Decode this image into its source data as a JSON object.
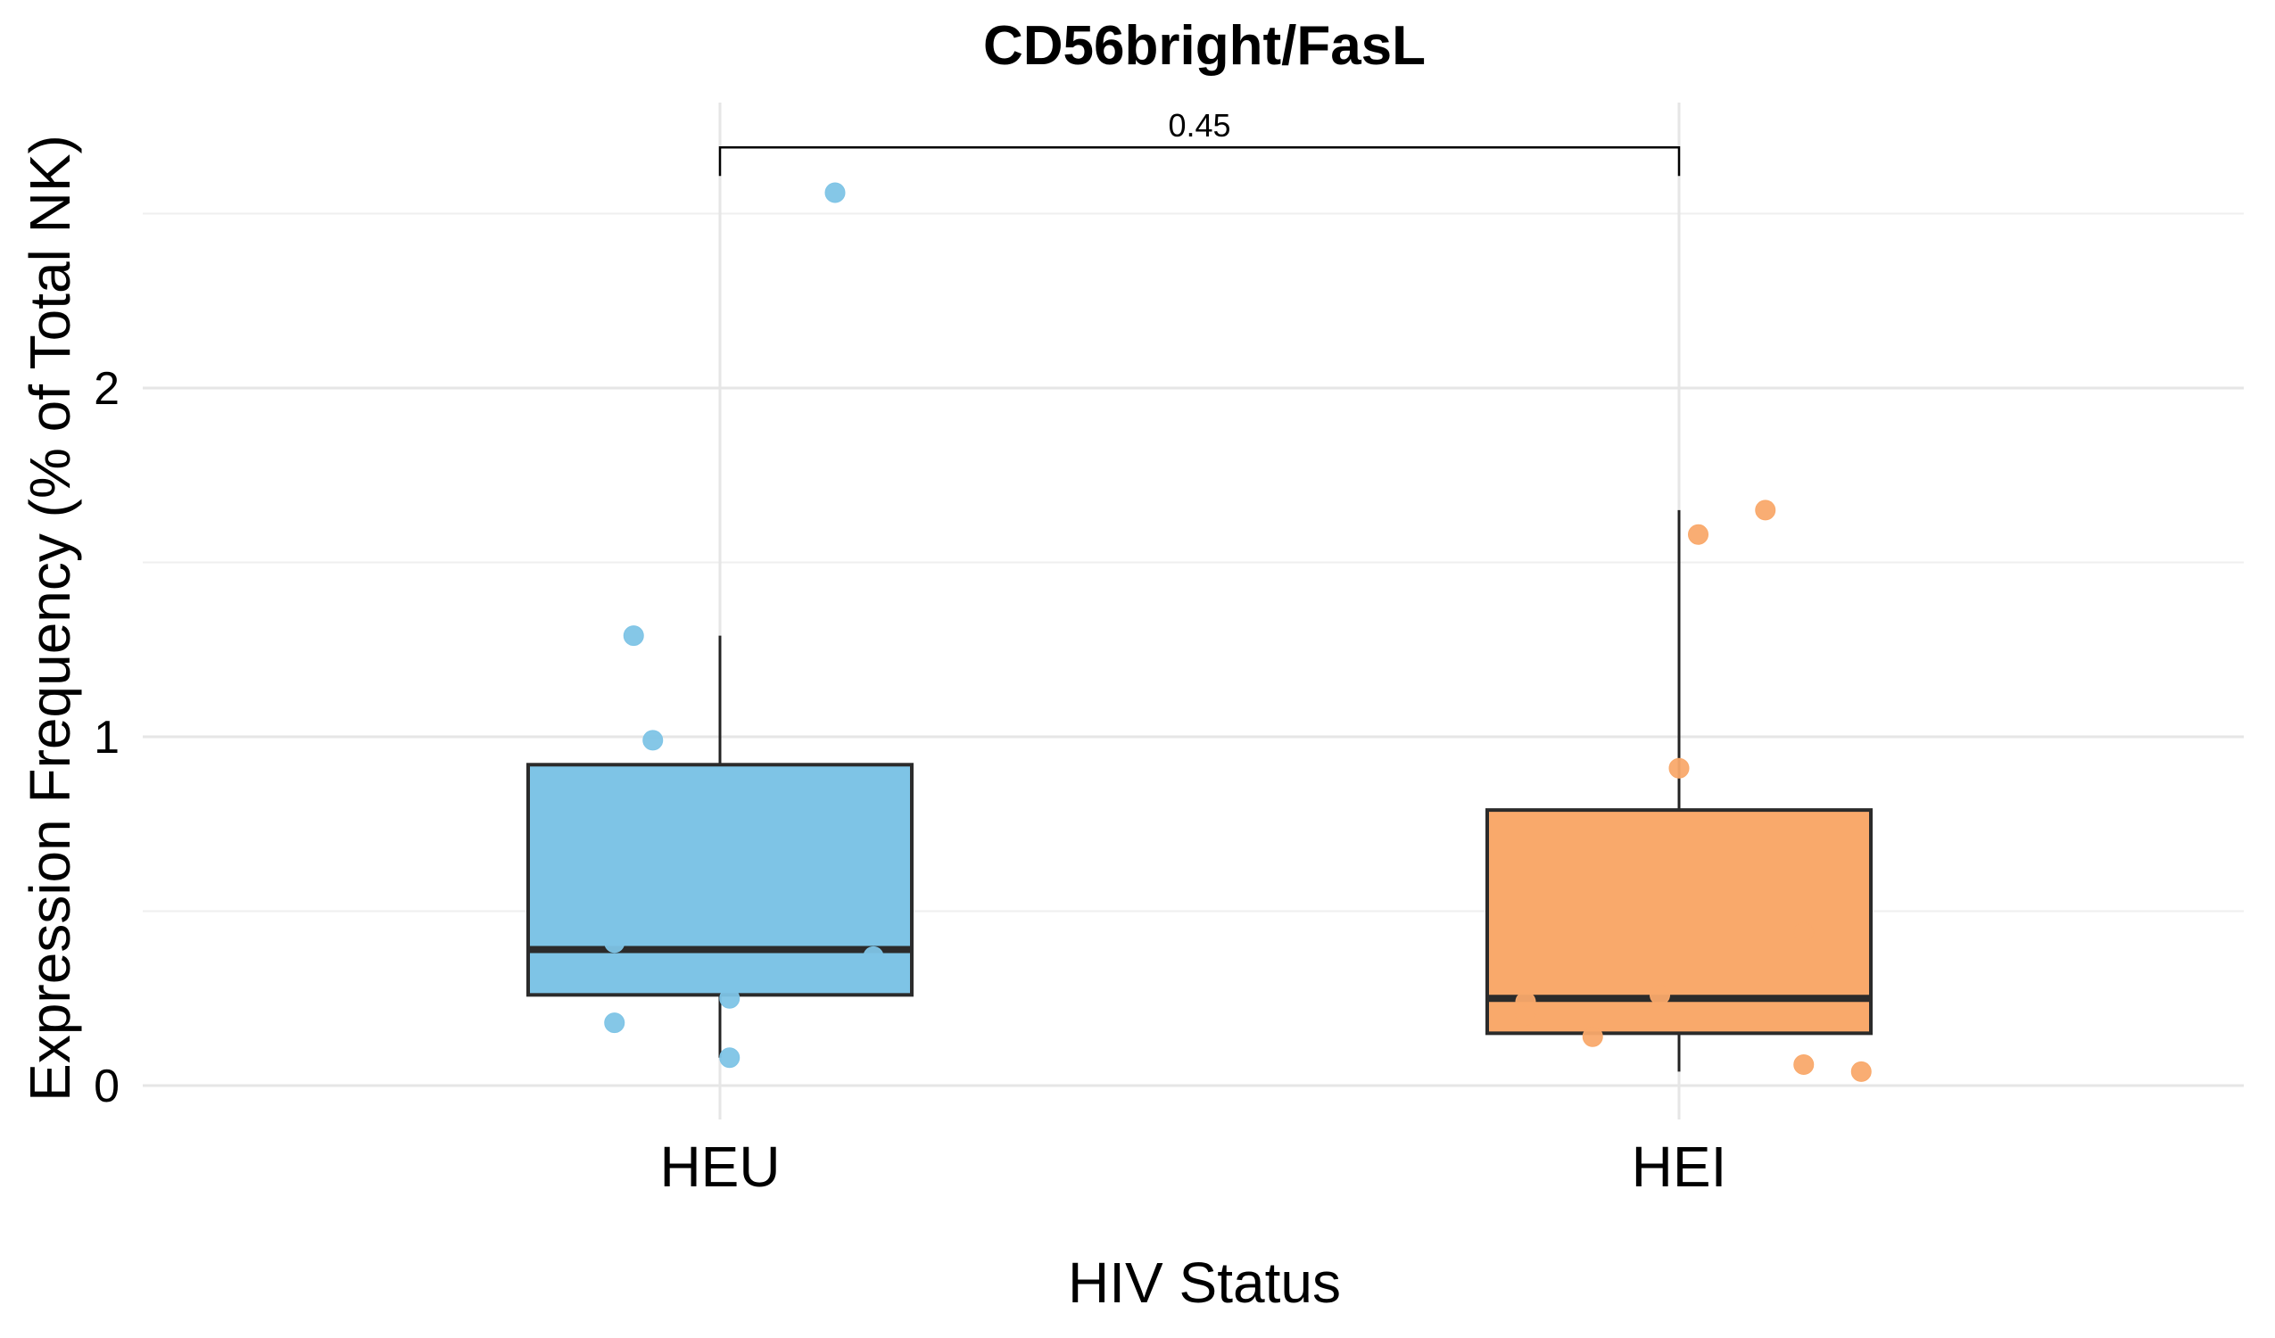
{
  "chart_data": {
    "type": "box",
    "title": "CD56bright/FasL",
    "xlabel": "HIV Status",
    "ylabel": "Expression Frequency (% of Total NK)",
    "categories": [
      "HEU",
      "HEI"
    ],
    "ylim": [
      -0.05,
      2.8
    ],
    "yticks": [
      0,
      1,
      2
    ],
    "grid": true,
    "legend": "none",
    "series": [
      {
        "category": "HEU",
        "color": "#7ec4e6",
        "box": {
          "whisker_low": 0.08,
          "q1": 0.26,
          "median": 0.39,
          "q3": 0.92,
          "whisker_high": 1.29
        },
        "points": [
          {
            "x_jitter": -0.09,
            "y": 1.29
          },
          {
            "x_jitter": -0.07,
            "y": 0.99
          },
          {
            "x_jitter": -0.09,
            "y": 0.71
          },
          {
            "x_jitter": -0.11,
            "y": 0.41
          },
          {
            "x_jitter": 0.16,
            "y": 0.37
          },
          {
            "x_jitter": -0.16,
            "y": 0.3
          },
          {
            "x_jitter": 0.01,
            "y": 0.25
          },
          {
            "x_jitter": -0.11,
            "y": 0.18
          },
          {
            "x_jitter": 0.01,
            "y": 0.08
          },
          {
            "x_jitter": 0.12,
            "y": 2.56
          }
        ]
      },
      {
        "category": "HEI",
        "color": "#f9a96b",
        "box": {
          "whisker_low": 0.04,
          "q1": 0.15,
          "median": 0.25,
          "q3": 0.79,
          "whisker_high": 1.65
        },
        "points": [
          {
            "x_jitter": 0.09,
            "y": 1.65
          },
          {
            "x_jitter": 0.02,
            "y": 1.58
          },
          {
            "x_jitter": 0.0,
            "y": 0.91
          },
          {
            "x_jitter": 0.13,
            "y": 0.44
          },
          {
            "x_jitter": -0.02,
            "y": 0.26
          },
          {
            "x_jitter": -0.16,
            "y": 0.24
          },
          {
            "x_jitter": -0.16,
            "y": 0.2
          },
          {
            "x_jitter": -0.09,
            "y": 0.14
          },
          {
            "x_jitter": 0.13,
            "y": 0.06
          },
          {
            "x_jitter": 0.19,
            "y": 0.04
          }
        ]
      }
    ],
    "annotations": [
      {
        "type": "significance-bracket",
        "from": "HEU",
        "to": "HEI",
        "label": "0.45",
        "y": 2.69
      }
    ]
  }
}
